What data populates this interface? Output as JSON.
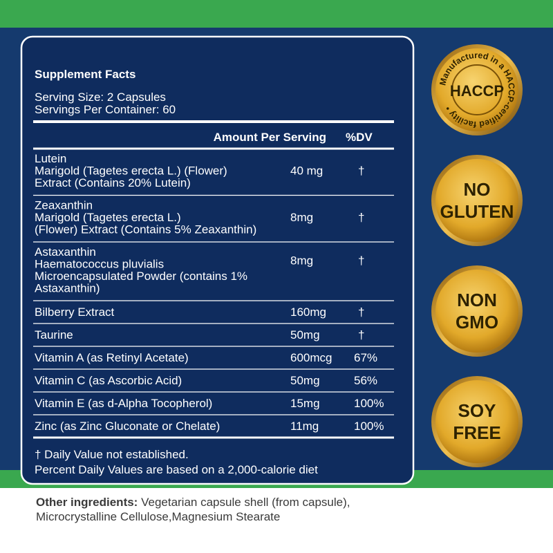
{
  "panel": {
    "title": "Supplement Facts",
    "serving_size": "Serving Size: 2 Capsules",
    "servings_per_container": "Servings Per Container: 60",
    "header": {
      "amount": "Amount Per Serving",
      "dv": "%DV"
    },
    "rows": [
      {
        "lines": [
          "Lutein",
          "Marigold (Tagetes erecta L.) (Flower)",
          "Extract (Contains 20% Lutein)"
        ],
        "amount": "40 mg",
        "dv": "†"
      },
      {
        "lines": [
          "Zeaxanthin",
          "Marigold (Tagetes erecta L.)",
          "(Flower) Extract (Contains 5% Zeaxanthin)"
        ],
        "amount": "8mg",
        "dv": "†"
      },
      {
        "lines": [
          "Astaxanthin",
          "Haematococcus pluvialis",
          "Microencapsulated Powder (contains 1%",
          "Astaxanthin)"
        ],
        "amount": "8mg",
        "dv": "†"
      },
      {
        "lines": [
          "Bilberry Extract"
        ],
        "amount": "160mg",
        "dv": "†"
      },
      {
        "lines": [
          "Taurine"
        ],
        "amount": "50mg",
        "dv": "†"
      },
      {
        "lines": [
          "Vitamin A (as Retinyl Acetate)"
        ],
        "amount": "600mcg",
        "dv": "67%"
      },
      {
        "lines": [
          "Vitamin C (as Ascorbic Acid)"
        ],
        "amount": "50mg",
        "dv": "56%"
      },
      {
        "lines": [
          "Vitamin E (as d-Alpha Tocopherol)"
        ],
        "amount": "15mg",
        "dv": "100%"
      },
      {
        "lines": [
          "Zinc (as Zinc Gluconate or Chelate)"
        ],
        "amount": "11mg",
        "dv": "100%"
      }
    ],
    "footnotes": [
      "† Daily Value not established.",
      "Percent Daily Values are based on a 2,000-calorie diet"
    ]
  },
  "other_ingredients": {
    "label": "Other ingredients:",
    "lines": [
      " Vegetarian capsule shell (from capsule),",
      "Microcrystalline Cellulose,Magnesium Stearate"
    ]
  },
  "badges": [
    {
      "lines": [
        "HACCP"
      ],
      "ring": "Manufactured in a HACCP-certified facility •"
    },
    {
      "lines": [
        "NO",
        "GLUTEN"
      ]
    },
    {
      "lines": [
        "NON",
        "GMO"
      ]
    },
    {
      "lines": [
        "SOY",
        "FREE"
      ]
    }
  ]
}
